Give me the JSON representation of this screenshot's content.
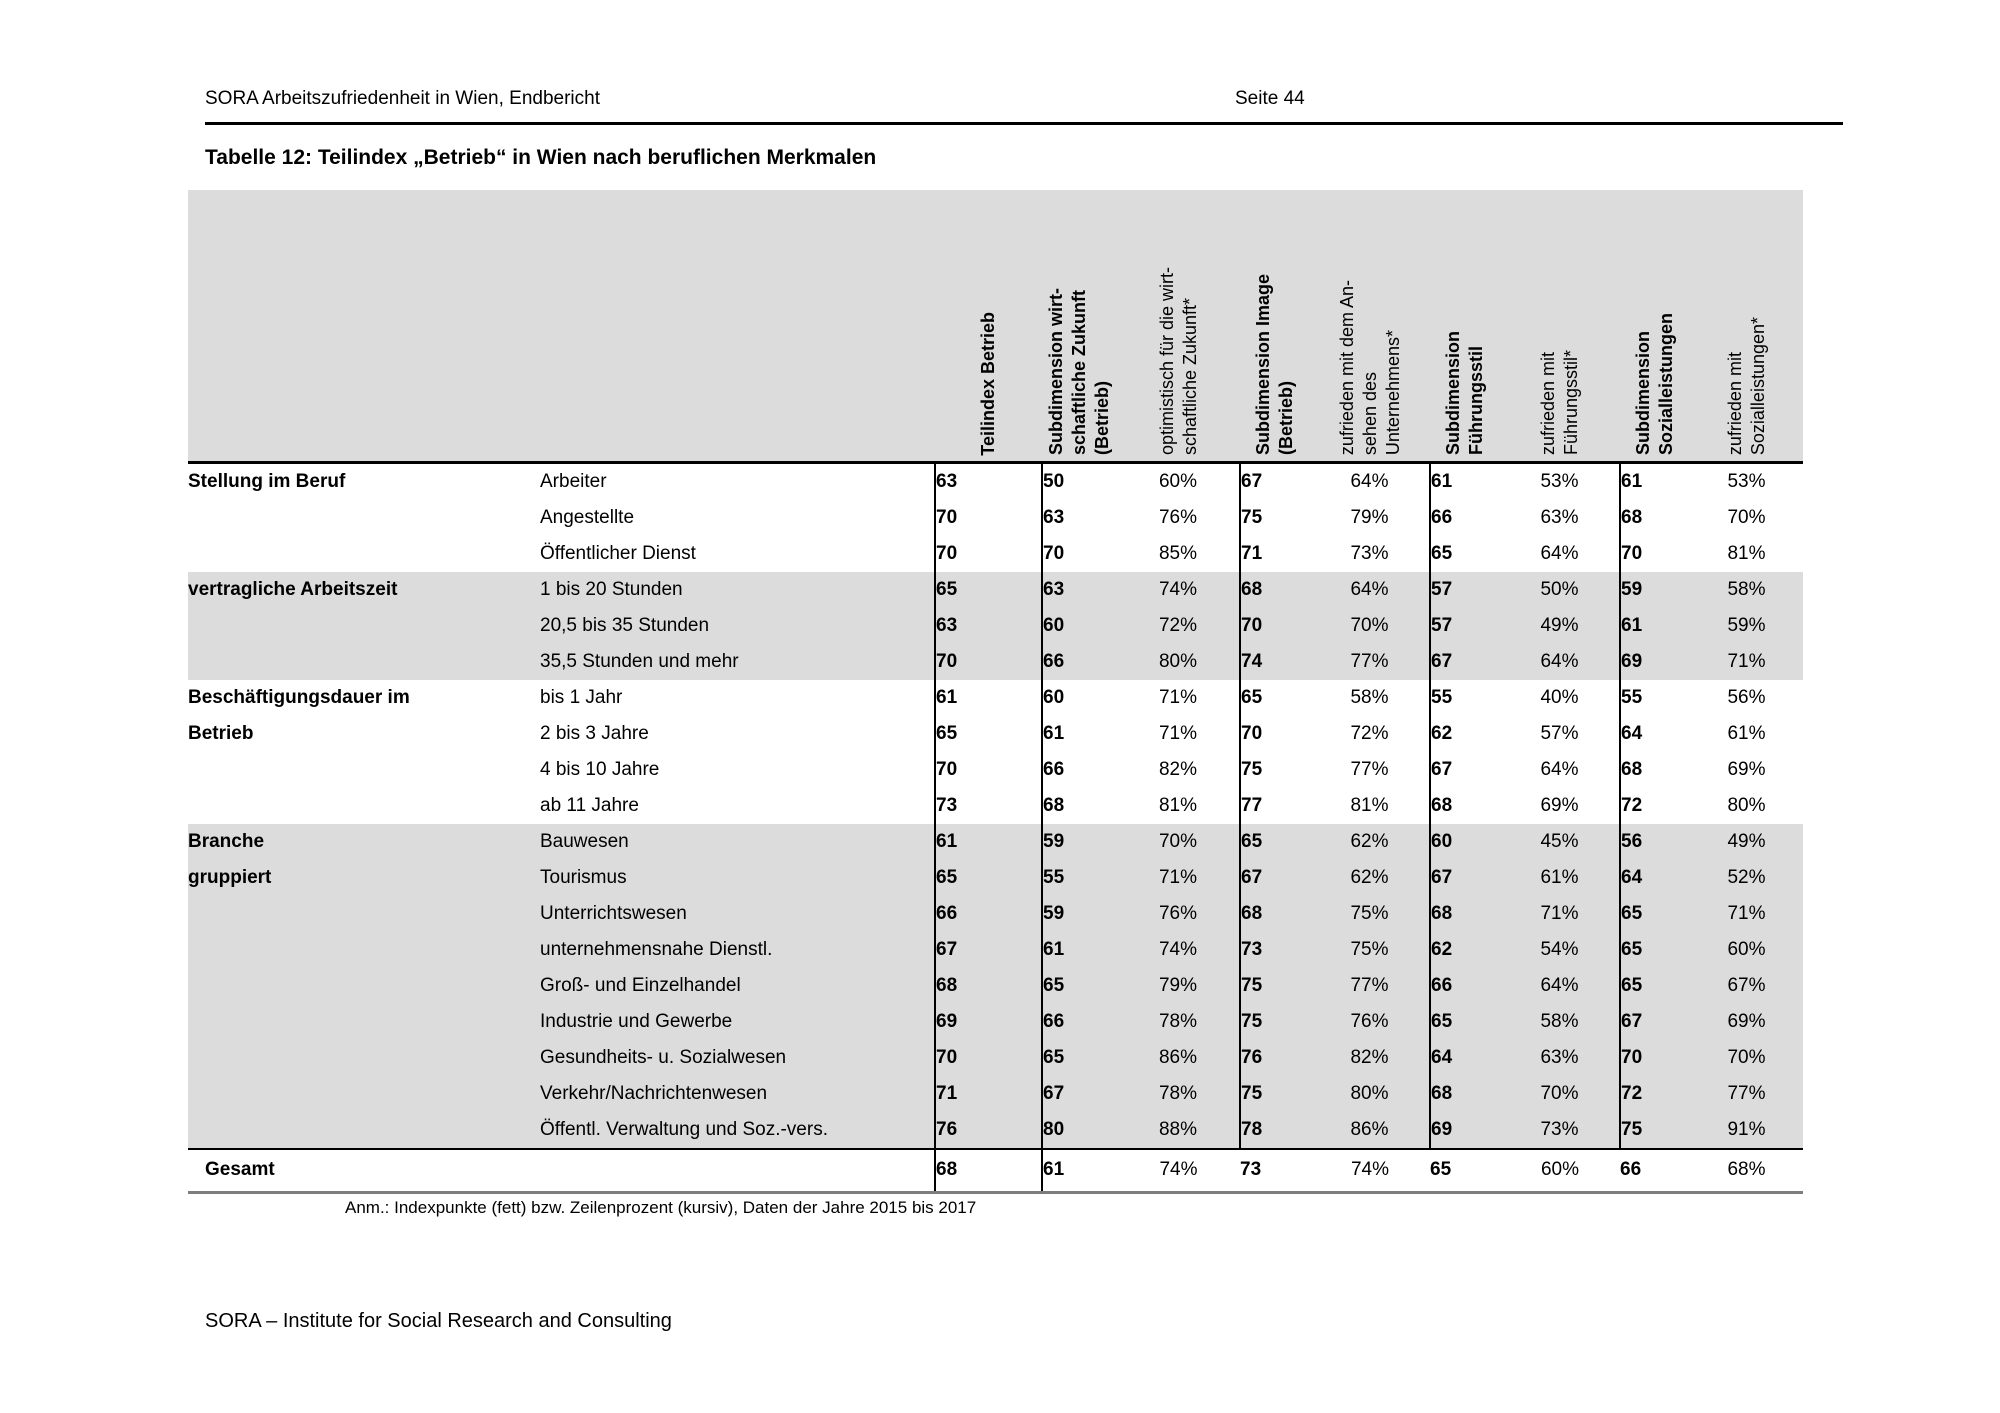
{
  "page_header": {
    "left": "SORA Arbeitszufriedenheit in Wien, Endbericht",
    "right": "Seite 44"
  },
  "title": "Tabelle 12: Teilindex „Betrieb“ in Wien nach beruflichen Merkmalen",
  "colors": {
    "band": "#dcdcdc",
    "rule": "#000000"
  },
  "table": {
    "columns": [
      {
        "label": "Teilindex Betrieb",
        "bold": true
      },
      {
        "label": "Subdimension wirt-\nschaftliche Zukunft\n(Betrieb)",
        "bold": true
      },
      {
        "label": "optimistisch für die wirt-\nschaftliche Zukunft*",
        "bold": false
      },
      {
        "label": "Subdimension Image\n(Betrieb)",
        "bold": true
      },
      {
        "label": "zufrieden mit dem An-\nsehen des\nUnternehmens*",
        "bold": false
      },
      {
        "label": "Subdimension\nFührungsstil",
        "bold": true
      },
      {
        "label": "zufrieden mit\nFührungsstil*",
        "bold": false
      },
      {
        "label": "Subdimension\nSozialleistungen",
        "bold": true
      },
      {
        "label": "zufrieden mit\nSozialleistungen*",
        "bold": false
      }
    ],
    "groups": [
      {
        "label": "Stellung im Beruf",
        "shaded": false,
        "rows": [
          {
            "label": "Arbeiter",
            "values": [
              "63",
              "50",
              "60%",
              "67",
              "64%",
              "61",
              "53%",
              "61",
              "53%"
            ]
          },
          {
            "label": "Angestellte",
            "values": [
              "70",
              "63",
              "76%",
              "75",
              "79%",
              "66",
              "63%",
              "68",
              "70%"
            ]
          },
          {
            "label": "Öffentlicher Dienst",
            "values": [
              "70",
              "70",
              "85%",
              "71",
              "73%",
              "65",
              "64%",
              "70",
              "81%"
            ]
          }
        ]
      },
      {
        "label": "vertragliche Arbeitszeit",
        "shaded": true,
        "rows": [
          {
            "label": "1 bis 20 Stunden",
            "values": [
              "65",
              "63",
              "74%",
              "68",
              "64%",
              "57",
              "50%",
              "59",
              "58%"
            ]
          },
          {
            "label": "20,5 bis 35 Stunden",
            "values": [
              "63",
              "60",
              "72%",
              "70",
              "70%",
              "57",
              "49%",
              "61",
              "59%"
            ]
          },
          {
            "label": "35,5 Stunden und mehr",
            "values": [
              "70",
              "66",
              "80%",
              "74",
              "77%",
              "67",
              "64%",
              "69",
              "71%"
            ]
          }
        ]
      },
      {
        "label": "Beschäftigungsdauer im\nBetrieb",
        "shaded": false,
        "rows": [
          {
            "label": "bis 1 Jahr",
            "values": [
              "61",
              "60",
              "71%",
              "65",
              "58%",
              "55",
              "40%",
              "55",
              "56%"
            ]
          },
          {
            "label": "2 bis 3 Jahre",
            "values": [
              "65",
              "61",
              "71%",
              "70",
              "72%",
              "62",
              "57%",
              "64",
              "61%"
            ]
          },
          {
            "label": "4 bis 10 Jahre",
            "values": [
              "70",
              "66",
              "82%",
              "75",
              "77%",
              "67",
              "64%",
              "68",
              "69%"
            ]
          },
          {
            "label": "ab 11 Jahre",
            "values": [
              "73",
              "68",
              "81%",
              "77",
              "81%",
              "68",
              "69%",
              "72",
              "80%"
            ]
          }
        ]
      },
      {
        "label": "Branche\ngruppiert",
        "shaded": true,
        "rows": [
          {
            "label": "Bauwesen",
            "values": [
              "61",
              "59",
              "70%",
              "65",
              "62%",
              "60",
              "45%",
              "56",
              "49%"
            ]
          },
          {
            "label": "Tourismus",
            "values": [
              "65",
              "55",
              "71%",
              "67",
              "62%",
              "67",
              "61%",
              "64",
              "52%"
            ]
          },
          {
            "label": "Unterrichtswesen",
            "values": [
              "66",
              "59",
              "76%",
              "68",
              "75%",
              "68",
              "71%",
              "65",
              "71%"
            ]
          },
          {
            "label": "unternehmensnahe Dienstl.",
            "values": [
              "67",
              "61",
              "74%",
              "73",
              "75%",
              "62",
              "54%",
              "65",
              "60%"
            ]
          },
          {
            "label": "Groß- und Einzelhandel",
            "values": [
              "68",
              "65",
              "79%",
              "75",
              "77%",
              "66",
              "64%",
              "65",
              "67%"
            ]
          },
          {
            "label": "Industrie und Gewerbe",
            "values": [
              "69",
              "66",
              "78%",
              "75",
              "76%",
              "65",
              "58%",
              "67",
              "69%"
            ]
          },
          {
            "label": "Gesundheits- u. Sozialwesen",
            "values": [
              "70",
              "65",
              "86%",
              "76",
              "82%",
              "64",
              "63%",
              "70",
              "70%"
            ]
          },
          {
            "label": "Verkehr/Nachrichtenwesen",
            "values": [
              "71",
              "67",
              "78%",
              "75",
              "80%",
              "68",
              "70%",
              "72",
              "77%"
            ]
          },
          {
            "label": "Öffentl. Verwaltung und Soz.-vers.",
            "values": [
              "76",
              "80",
              "88%",
              "78",
              "86%",
              "69",
              "73%",
              "75",
              "91%"
            ]
          }
        ]
      }
    ],
    "total": {
      "label": "Gesamt",
      "values": [
        "68",
        "61",
        "74%",
        "73",
        "74%",
        "65",
        "60%",
        "66",
        "68%"
      ]
    }
  },
  "footnote": "Anm.: Indexpunkte (fett) bzw. Zeilenprozent (kursiv), Daten der Jahre 2015 bis 2017",
  "footer": "SORA – Institute for Social Research and Consulting"
}
